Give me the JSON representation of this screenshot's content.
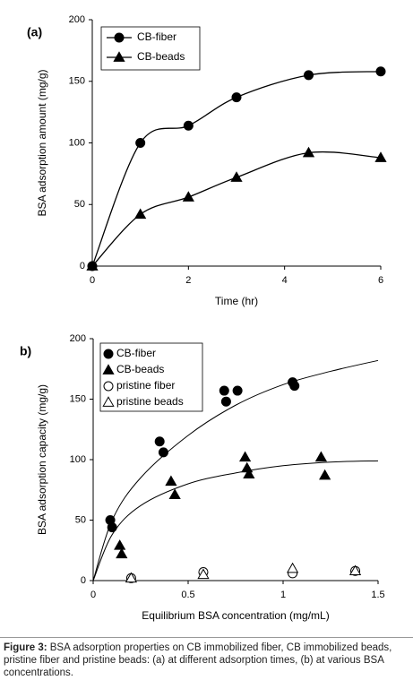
{
  "chart_data": [
    {
      "type": "line",
      "label": "(a)",
      "x_label": "Time (hr)",
      "y_label": "BSA adsorption amount (mg/g)",
      "xlim": [
        0,
        6
      ],
      "xticks": [
        0,
        2,
        4,
        6
      ],
      "ylim": [
        0,
        200
      ],
      "yticks": [
        0,
        50,
        100,
        150,
        200
      ],
      "smooth": true,
      "legend": "upper-left",
      "series": [
        {
          "name": "CB-fiber",
          "color": "#000000",
          "marker": "circle",
          "filled": true,
          "x": [
            0,
            1,
            2,
            3,
            4.5,
            6
          ],
          "values": [
            0,
            100,
            114,
            137,
            155,
            158
          ]
        },
        {
          "name": "CB-beads",
          "color": "#000000",
          "marker": "triangle",
          "filled": true,
          "x": [
            0,
            1,
            2,
            3,
            4.5,
            6
          ],
          "values": [
            0,
            42,
            56,
            72,
            92,
            88
          ]
        }
      ]
    },
    {
      "type": "scatter",
      "label": "b)",
      "x_label": "Equilibrium BSA concentration (mg/mL)",
      "y_label": "BSA adsorption capacity (mg/g)",
      "xlim": [
        0,
        1.5
      ],
      "xticks": [
        0,
        0.5,
        1,
        1.5
      ],
      "ylim": [
        0,
        200
      ],
      "yticks": [
        0,
        50,
        100,
        150,
        200
      ],
      "legend": "upper-left",
      "series": [
        {
          "name": "CB-fiber",
          "color": "#000000",
          "marker": "circle",
          "filled": true,
          "x": [
            0.09,
            0.1,
            0.35,
            0.37,
            0.69,
            0.7,
            0.76,
            1.05,
            1.06
          ],
          "values": [
            50,
            44,
            115,
            106,
            157,
            148,
            157,
            164,
            161
          ]
        },
        {
          "name": "CB-beads",
          "color": "#000000",
          "marker": "triangle",
          "filled": true,
          "x": [
            0.14,
            0.15,
            0.41,
            0.43,
            0.8,
            0.81,
            0.82,
            1.2,
            1.22
          ],
          "values": [
            29,
            22,
            82,
            71,
            102,
            93,
            88,
            102,
            87
          ]
        },
        {
          "name": "pristine fiber",
          "color": "#000000",
          "marker": "circle",
          "filled": false,
          "x": [
            0.2,
            0.58,
            1.05,
            1.38
          ],
          "values": [
            2,
            7,
            6,
            8
          ]
        },
        {
          "name": "pristine beads",
          "color": "#000000",
          "marker": "triangle",
          "filled": false,
          "x": [
            0.2,
            0.58,
            1.05,
            1.38
          ],
          "values": [
            2,
            5,
            10,
            8
          ]
        }
      ],
      "curves": [
        {
          "color": "#000000",
          "x": [
            0,
            0.1,
            0.25,
            0.5,
            0.75,
            1,
            1.25,
            1.5
          ],
          "values": [
            0,
            50,
            85,
            120,
            145,
            162,
            173,
            182
          ]
        },
        {
          "color": "#000000",
          "x": [
            0,
            0.1,
            0.25,
            0.5,
            0.75,
            1,
            1.25,
            1.5
          ],
          "values": [
            0,
            38,
            62,
            80,
            89,
            95,
            98,
            99
          ]
        }
      ]
    }
  ],
  "caption": {
    "label": "Figure 3:",
    "text": "BSA adsorption properties on CB immobilized fiber, CB immobilized beads, pristine fiber and pristine beads: (a) at different adsorption times, (b) at various BSA concentrations."
  }
}
